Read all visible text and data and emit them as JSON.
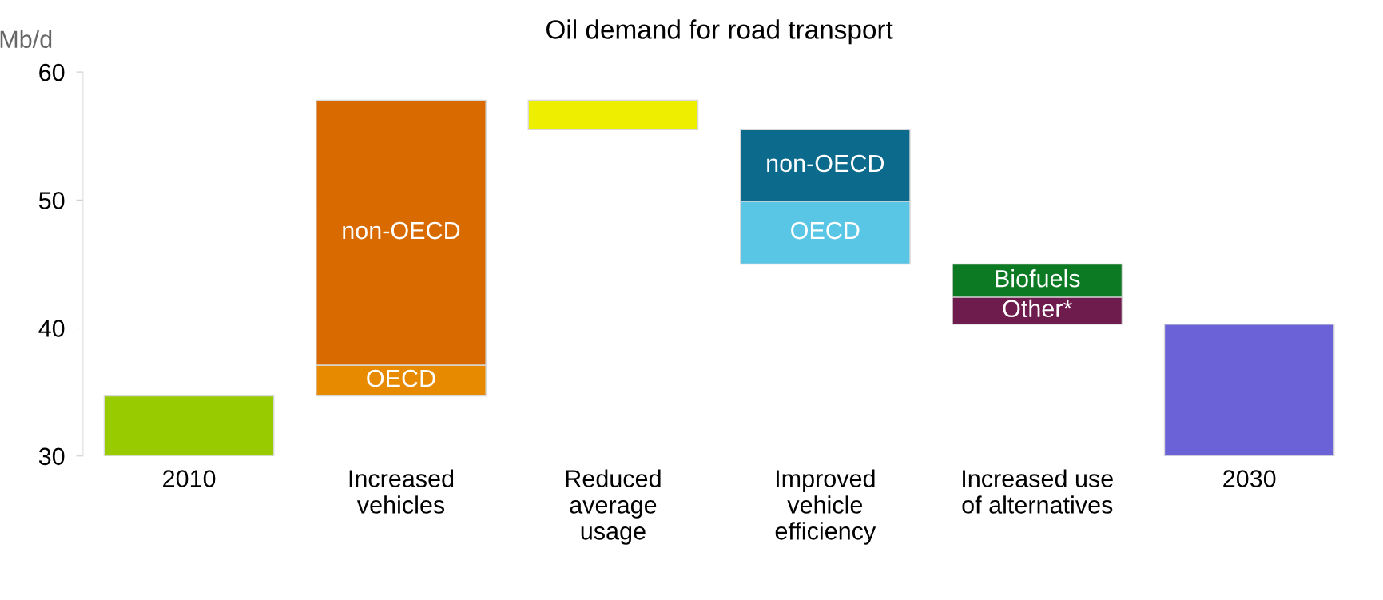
{
  "chart_data": {
    "type": "bar",
    "title": "Oil demand for road transport",
    "ylabel": "Mb/d",
    "categories": [
      "2010",
      "Increased\nvehicles",
      "Reduced\naverage\nusage",
      "Improved\nvehicle\nefficiency",
      "Increased use\nof alternatives",
      "2030"
    ],
    "series": [
      {
        "values": [
          4.7,
          null,
          null,
          null,
          null,
          10.3
        ],
        "base": [
          30,
          null,
          null,
          null,
          null,
          30
        ],
        "colors": [
          "#99cc00",
          null,
          null,
          null,
          null,
          "#6a62d6"
        ]
      },
      {
        "name": "OECD",
        "values": [
          null,
          2.4,
          null,
          null,
          null,
          null
        ],
        "base": [
          null,
          34.7,
          null,
          null,
          null,
          null
        ],
        "color": "#e88a00"
      },
      {
        "name": "non-OECD",
        "values": [
          null,
          20.7,
          null,
          null,
          null,
          null
        ],
        "base": [
          null,
          37.1,
          null,
          null,
          null,
          null
        ],
        "color": "#d86a00"
      },
      {
        "values": [
          null,
          null,
          -2.3,
          null,
          null,
          null
        ],
        "base": [
          null,
          null,
          57.8,
          null,
          null,
          null
        ],
        "color": "#eeee00"
      },
      {
        "name": "non-OECD",
        "values": [
          null,
          null,
          null,
          -5.6,
          null,
          null
        ],
        "base": [
          null,
          null,
          null,
          55.5,
          null,
          null
        ],
        "color": "#0c6a8c"
      },
      {
        "name": "OECD",
        "values": [
          null,
          null,
          null,
          -4.9,
          null,
          null
        ],
        "base": [
          null,
          null,
          null,
          49.9,
          null,
          null
        ],
        "color": "#5ac6e6"
      },
      {
        "name": "Biofuels",
        "values": [
          null,
          null,
          null,
          null,
          -2.6,
          null
        ],
        "base": [
          null,
          null,
          null,
          null,
          45,
          null
        ],
        "color": "#0b7a22"
      },
      {
        "name": "Other*",
        "values": [
          null,
          null,
          null,
          null,
          -2.1,
          null
        ],
        "base": [
          null,
          null,
          null,
          null,
          42.4,
          null
        ],
        "color": "#6e1c4e"
      }
    ],
    "ylim": [
      30,
      60
    ],
    "yticks": [
      30,
      40,
      50,
      60
    ],
    "grid": false,
    "legend": false
  }
}
